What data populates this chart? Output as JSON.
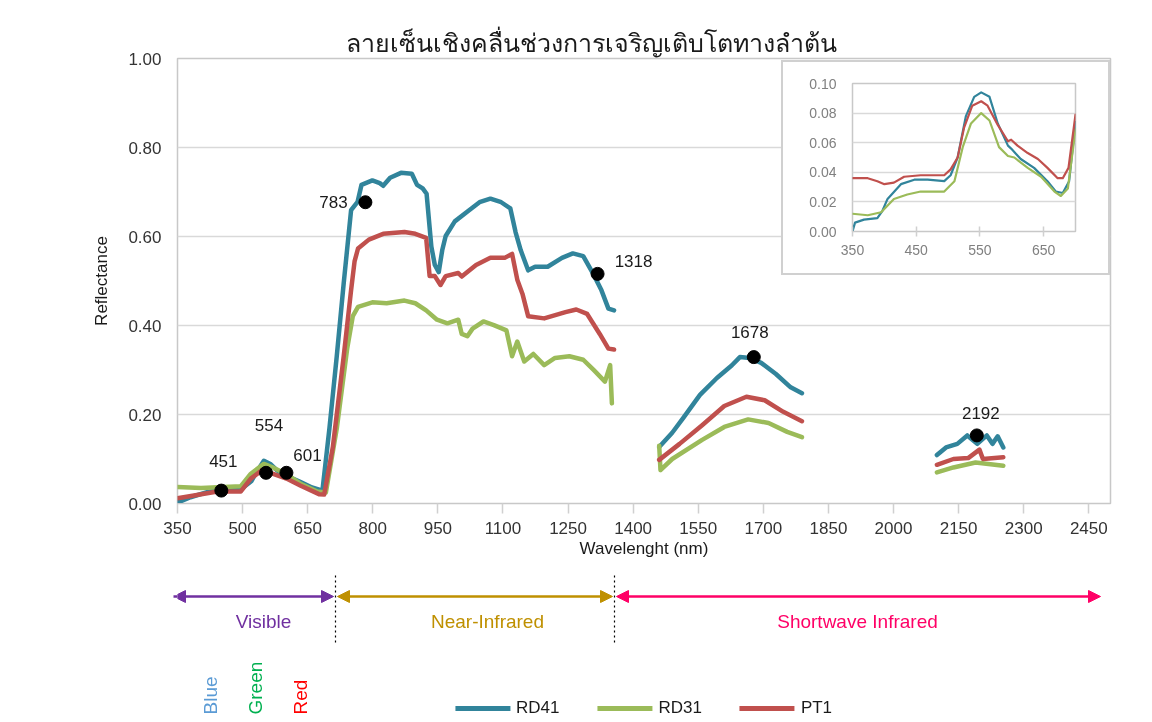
{
  "chart_data": [
    {
      "type": "line",
      "title": "ลายเซ็นเชิงคลื่นช่วงการเจริญเติบโตทางลำต้น",
      "xlabel": "Wavelenght (nm)",
      "ylabel": "Reflectance",
      "xlim": [
        350,
        2500
      ],
      "xticks": [
        350,
        500,
        650,
        800,
        950,
        1100,
        1250,
        1400,
        1550,
        1700,
        1850,
        2000,
        2150,
        2300,
        2450
      ],
      "ylim": [
        0,
        1
      ],
      "yticks": [
        {
          "value": 0,
          "label": "0.00"
        },
        {
          "value": 0.2,
          "label": "0.20"
        },
        {
          "value": 0.4,
          "label": "0.40"
        },
        {
          "value": 0.6,
          "label": "0.60"
        },
        {
          "value": 0.8,
          "label": "0.80"
        },
        {
          "value": 1,
          "label": "1.00"
        }
      ],
      "grid": "y",
      "legend": "bottom",
      "series": [
        {
          "name": "RD41",
          "color": "#31849b",
          "x": [
            350,
            380,
            420,
            460,
            500,
            520,
            535,
            549,
            565,
            580,
            601,
            630,
            660,
            684,
            700,
            717,
            733,
            750,
            765,
            774,
            799,
            816,
            824,
            840,
            865,
            890,
            902,
            915,
            924,
            935,
            943,
            952,
            960,
            968,
            989,
            1022,
            1046,
            1071,
            1096,
            1117,
            1129,
            1141,
            1158,
            1174,
            1203,
            1236,
            1261,
            1285,
            1308,
            1327,
            1343,
            1356,
            1400,
            1460,
            1490,
            1516,
            1554,
            1593,
            1627,
            1646,
            1669,
            1695,
            1729,
            1763,
            1789,
            1950,
            2100,
            2121,
            2147,
            2170,
            2193,
            2215,
            2228,
            2240,
            2253
          ],
          "values": [
            0.002,
            0.014,
            0.026,
            0.032,
            0.035,
            0.05,
            0.075,
            0.096,
            0.088,
            0.074,
            0.062,
            0.05,
            0.036,
            0.029,
            0.168,
            0.331,
            0.495,
            0.659,
            0.678,
            0.716,
            0.726,
            0.72,
            0.714,
            0.732,
            0.743,
            0.741,
            0.716,
            0.708,
            0.696,
            0.577,
            0.536,
            0.52,
            0.569,
            0.601,
            0.634,
            0.659,
            0.677,
            0.685,
            0.677,
            0.663,
            0.61,
            0.569,
            0.524,
            0.532,
            0.532,
            0.552,
            0.562,
            0.556,
            0.516,
            0.479,
            0.438,
            0.434,
            null,
            0.127,
            0.159,
            0.193,
            0.244,
            0.282,
            0.31,
            0.329,
            0.327,
            0.316,
            0.291,
            0.261,
            0.248,
            null,
            0.109,
            0.126,
            0.134,
            0.153,
            0.134,
            0.153,
            0.134,
            0.151,
            0.126
          ]
        },
        {
          "name": "RD31",
          "color": "#9bbb59",
          "x": [
            350,
            404,
            496,
            519,
            549,
            572,
            601,
            634,
            672,
            692,
            717,
            741,
            754,
            766,
            799,
            832,
            873,
            898,
            923,
            948,
            972,
            997,
            1005,
            1018,
            1030,
            1055,
            1079,
            1108,
            1121,
            1133,
            1149,
            1170,
            1195,
            1220,
            1253,
            1285,
            1310,
            1335,
            1347,
            1351,
            1400,
            1460,
            1463,
            1490,
            1559,
            1610,
            1665,
            1712,
            1755,
            1789,
            1950,
            2100,
            2138,
            2189,
            2253
          ],
          "values": [
            0.037,
            0.035,
            0.039,
            0.067,
            0.089,
            0.08,
            0.066,
            0.044,
            0.027,
            0.025,
            0.168,
            0.348,
            0.421,
            0.442,
            0.452,
            0.45,
            0.456,
            0.45,
            0.434,
            0.413,
            0.405,
            0.413,
            0.381,
            0.376,
            0.393,
            0.409,
            0.401,
            0.389,
            0.331,
            0.364,
            0.319,
            0.336,
            0.311,
            0.327,
            0.331,
            0.323,
            0.299,
            0.274,
            0.311,
            0.225,
            null,
            0.13,
            0.075,
            0.1,
            0.143,
            0.172,
            0.189,
            0.181,
            0.161,
            0.149,
            null,
            0.07,
            0.081,
            0.092,
            0.085
          ]
        },
        {
          "name": "PT1",
          "color": "#c0504d",
          "x": [
            350,
            388,
            442,
            496,
            519,
            545,
            572,
            601,
            634,
            676,
            688,
            708,
            733,
            750,
            758,
            766,
            791,
            824,
            873,
            898,
            923,
            931,
            943,
            956,
            968,
            997,
            1005,
            1038,
            1071,
            1104,
            1121,
            1133,
            1145,
            1158,
            1195,
            1244,
            1269,
            1294,
            1323,
            1343,
            1356,
            1400,
            1460,
            1507,
            1559,
            1610,
            1661,
            1703,
            1746,
            1789,
            1950,
            2100,
            2138,
            2172,
            2198,
            2206,
            2253
          ],
          "values": [
            0.012,
            0.018,
            0.027,
            0.027,
            0.056,
            0.075,
            0.066,
            0.056,
            0.04,
            0.021,
            0.02,
            0.127,
            0.331,
            0.479,
            0.544,
            0.573,
            0.593,
            0.606,
            0.61,
            0.606,
            0.597,
            0.511,
            0.511,
            0.491,
            0.511,
            0.518,
            0.51,
            0.536,
            0.552,
            0.552,
            0.561,
            0.503,
            0.471,
            0.421,
            0.416,
            0.43,
            0.436,
            0.426,
            0.381,
            0.348,
            0.346,
            null,
            0.098,
            0.134,
            0.176,
            0.219,
            0.24,
            0.232,
            0.206,
            0.185,
            null,
            0.087,
            0.1,
            0.102,
            0.121,
            0.1,
            0.104
          ]
        },
        {
          "type": "scatter",
          "color": "#000000",
          "marker": "circle",
          "x": [
            451,
            554,
            601,
            783,
            1318,
            1678,
            2192
          ],
          "values": [
            0.029,
            0.069,
            0.069,
            0.677,
            0.516,
            0.329,
            0.153
          ]
        }
      ],
      "annotations": [
        {
          "text": "451",
          "x": 451,
          "y": 0.029
        },
        {
          "text": "554",
          "x": 554,
          "y": 0.069
        },
        {
          "text": "601",
          "x": 601,
          "y": 0.069
        },
        {
          "text": "783",
          "x": 783,
          "y": 0.677
        },
        {
          "text": "1318",
          "x": 1318,
          "y": 0.516
        },
        {
          "text": "1678",
          "x": 1678,
          "y": 0.329
        },
        {
          "text": "2192",
          "x": 2192,
          "y": 0.153
        },
        "Visible",
        "Near-Infrared",
        "Shortwave Infrared",
        "Blue",
        "Green",
        "Red"
      ]
    },
    {
      "type": "line",
      "xlim": [
        350,
        700
      ],
      "xticks": [
        350,
        450,
        550,
        650
      ],
      "ylim": [
        0,
        0.1
      ],
      "yticks": [
        {
          "value": 0,
          "label": "0.00"
        },
        {
          "value": 0.02,
          "label": "0.02"
        },
        {
          "value": 0.04,
          "label": "0.04"
        },
        {
          "value": 0.06,
          "label": "0.06"
        },
        {
          "value": 0.08,
          "label": "0.08"
        },
        {
          "value": 0.1,
          "label": "0.10"
        }
      ],
      "grid": "y",
      "series": [
        {
          "color": "#31849b",
          "x": [
            350,
            354,
            368,
            389,
            397,
            405,
            426,
            447,
            468,
            494,
            504,
            515,
            528,
            541,
            552,
            565,
            578,
            594,
            599,
            614,
            635,
            656,
            669,
            680,
            690,
            700
          ],
          "values": [
            0.0,
            0.006,
            0.008,
            0.009,
            0.014,
            0.022,
            0.032,
            0.035,
            0.035,
            0.034,
            0.038,
            0.05,
            0.078,
            0.091,
            0.094,
            0.091,
            0.073,
            0.058,
            0.056,
            0.049,
            0.043,
            0.034,
            0.027,
            0.026,
            0.034,
            0.074
          ]
        },
        {
          "color": "#9bbb59",
          "x": [
            350,
            374,
            395,
            415,
            436,
            457,
            494,
            510,
            523,
            536,
            552,
            565,
            580,
            594,
            604,
            625,
            646,
            667,
            677,
            688,
            700
          ],
          "values": [
            0.012,
            0.011,
            0.013,
            0.022,
            0.025,
            0.027,
            0.027,
            0.034,
            0.057,
            0.073,
            0.08,
            0.075,
            0.057,
            0.051,
            0.05,
            0.043,
            0.037,
            0.027,
            0.024,
            0.029,
            0.069
          ]
        },
        {
          "color": "#c0504d",
          "x": [
            350,
            374,
            389,
            400,
            415,
            431,
            457,
            494,
            504,
            515,
            525,
            538,
            552,
            562,
            578,
            594,
            599,
            609,
            625,
            641,
            656,
            672,
            680,
            689,
            700
          ],
          "values": [
            0.036,
            0.036,
            0.034,
            0.032,
            0.033,
            0.037,
            0.038,
            0.038,
            0.042,
            0.05,
            0.07,
            0.085,
            0.088,
            0.085,
            0.072,
            0.061,
            0.062,
            0.058,
            0.053,
            0.049,
            0.043,
            0.036,
            0.036,
            0.043,
            0.079
          ]
        }
      ]
    }
  ]
}
